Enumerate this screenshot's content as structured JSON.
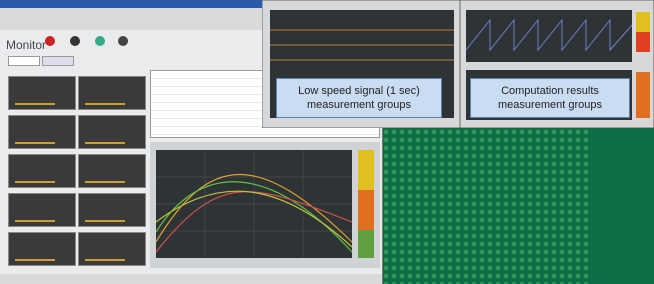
{
  "window": {
    "title": "Monitor"
  },
  "callouts": [
    {
      "lines": [
        "Low speed signal (1 sec)",
        "measurement groups"
      ]
    },
    {
      "lines": [
        "Computation results",
        "measurement groups"
      ]
    }
  ]
}
